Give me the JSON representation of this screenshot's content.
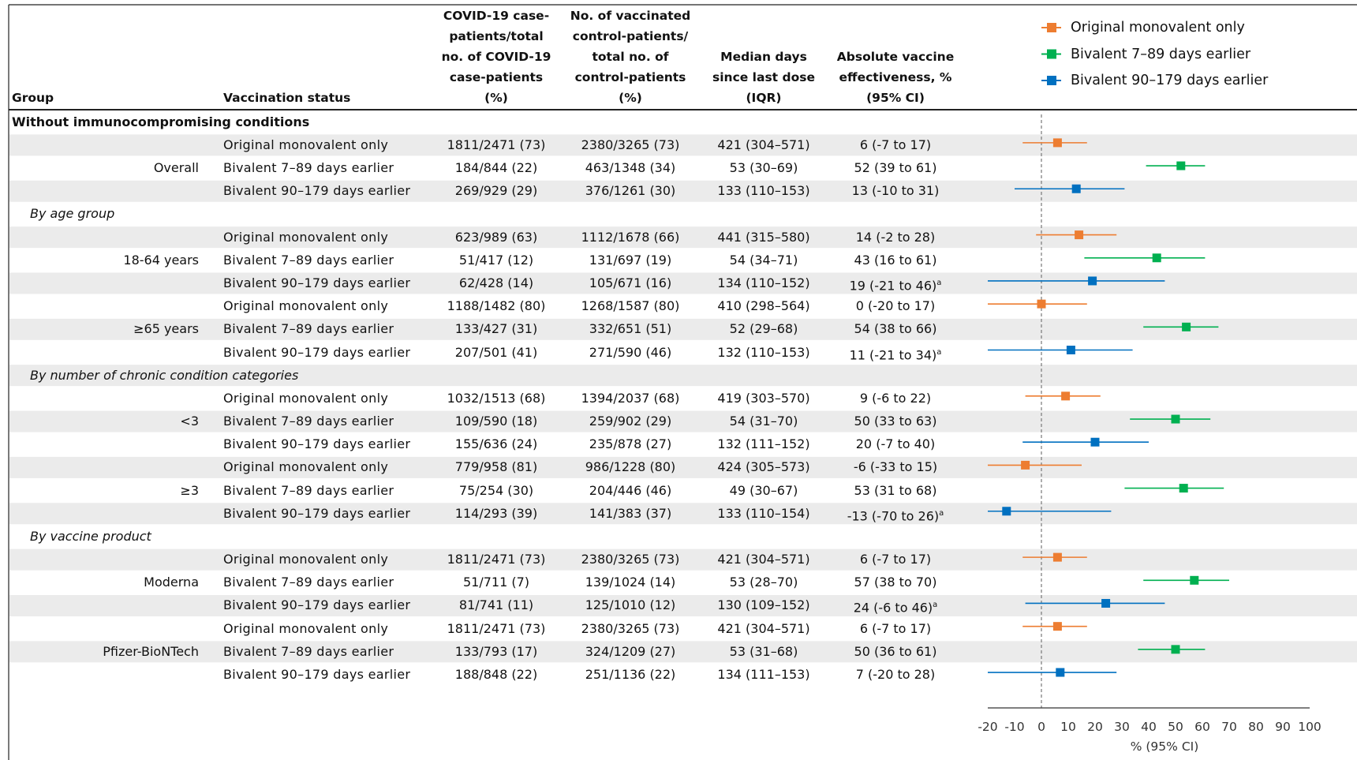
{
  "chart_data": {
    "type": "forest",
    "headers": [
      "Group",
      "Vaccination status",
      "No. of vaccinated COVID-19 case-patients/total no. of COVID-19 case-patients (%)",
      "No. of vaccinated control-patients/ total no. of control-patients (%)",
      "Median days since last dose (IQR)",
      "Absolute vaccine effectiveness, % (95% CI)"
    ],
    "series": [
      {
        "name": "Original monovalent only",
        "color": "#ED7D31"
      },
      {
        "name": "Bivalent 7–89 days earlier",
        "color": "#00B050"
      },
      {
        "name": "Bivalent 90–179 days earlier",
        "color": "#0070C0"
      }
    ],
    "sections": [
      {
        "title": "Without immunocompromising conditions",
        "groups": [
          {
            "label": "Overall",
            "rows": [
              {
                "cases": "1811/2471 (73)",
                "controls": "2380/3265 (73)",
                "median": "421 (304–571)",
                "value": 6,
                "lo": -7,
                "hi": 17,
                "value_label": "6 (-7 to 17)"
              },
              {
                "cases": "184/844 (22)",
                "controls": "463/1348 (34)",
                "median": "53 (30–69)",
                "value": 52,
                "lo": 39,
                "hi": 61,
                "value_label": "52 (39 to 61)"
              },
              {
                "cases": "269/929 (29)",
                "controls": "376/1261 (30)",
                "median": "133 (110–153)",
                "value": 13,
                "lo": -10,
                "hi": 31,
                "value_label": "13 (-10 to 31)"
              }
            ]
          }
        ]
      },
      {
        "title": "By age group",
        "groups": [
          {
            "label": "18-64 years",
            "rows": [
              {
                "cases": "623/989 (63)",
                "controls": "1112/1678 (66)",
                "median": "441 (315–580)",
                "value": 14,
                "lo": -2,
                "hi": 28,
                "value_label": "14 (-2 to 28)"
              },
              {
                "cases": "51/417 (12)",
                "controls": "131/697 (19)",
                "median": "54 (34–71)",
                "value": 43,
                "lo": 16,
                "hi": 61,
                "value_label": "43 (16 to 61)"
              },
              {
                "cases": "62/428 (14)",
                "controls": "105/671 (16)",
                "median": "134 (110–152)",
                "value": 19,
                "lo": -21,
                "hi": 46,
                "value_label": "19 (-21 to 46)",
                "note": "a"
              }
            ]
          },
          {
            "label": "≥65 years",
            "rows": [
              {
                "cases": "1188/1482 (80)",
                "controls": "1268/1587 (80)",
                "median": "410 (298–564)",
                "value": 0,
                "lo": -20,
                "hi": 17,
                "value_label": "0 (-20 to 17)"
              },
              {
                "cases": "133/427 (31)",
                "controls": "332/651 (51)",
                "median": "52 (29–68)",
                "value": 54,
                "lo": 38,
                "hi": 66,
                "value_label": "54 (38 to 66)"
              },
              {
                "cases": "207/501 (41)",
                "controls": "271/590 (46)",
                "median": "132 (110–153)",
                "value": 11,
                "lo": -21,
                "hi": 34,
                "value_label": "11 (-21 to 34)",
                "note": "a"
              }
            ]
          }
        ]
      },
      {
        "title": "By number of chronic condition categories",
        "groups": [
          {
            "label": "<3",
            "rows": [
              {
                "cases": "1032/1513 (68)",
                "controls": "1394/2037 (68)",
                "median": "419 (303–570)",
                "value": 9,
                "lo": -6,
                "hi": 22,
                "value_label": "9 (-6 to 22)"
              },
              {
                "cases": "109/590 (18)",
                "controls": "259/902 (29)",
                "median": "54 (31–70)",
                "value": 50,
                "lo": 33,
                "hi": 63,
                "value_label": "50 (33 to 63)"
              },
              {
                "cases": "155/636 (24)",
                "controls": "235/878 (27)",
                "median": "132 (111–152)",
                "value": 20,
                "lo": -7,
                "hi": 40,
                "value_label": "20 (-7 to 40)"
              }
            ]
          },
          {
            "label": "≥3",
            "rows": [
              {
                "cases": "779/958 (81)",
                "controls": "986/1228 (80)",
                "median": "424 (305–573)",
                "value": -6,
                "lo": -33,
                "hi": 15,
                "value_label": "-6 (-33 to 15)"
              },
              {
                "cases": "75/254 (30)",
                "controls": "204/446 (46)",
                "median": "49 (30–67)",
                "value": 53,
                "lo": 31,
                "hi": 68,
                "value_label": "53 (31 to 68)"
              },
              {
                "cases": "114/293 (39)",
                "controls": "141/383 (37)",
                "median": "133 (110–154)",
                "value": -13,
                "lo": -70,
                "hi": 26,
                "value_label": "-13 (-70 to 26)",
                "note": "a"
              }
            ]
          }
        ]
      },
      {
        "title": "By vaccine product",
        "groups": [
          {
            "label": "Moderna",
            "rows": [
              {
                "cases": "1811/2471 (73)",
                "controls": "2380/3265 (73)",
                "median": "421 (304–571)",
                "value": 6,
                "lo": -7,
                "hi": 17,
                "value_label": "6 (-7 to 17)"
              },
              {
                "cases": "51/711 (7)",
                "controls": "139/1024 (14)",
                "median": "53 (28–70)",
                "value": 57,
                "lo": 38,
                "hi": 70,
                "value_label": "57 (38 to 70)"
              },
              {
                "cases": "81/741 (11)",
                "controls": "125/1010 (12)",
                "median": "130 (109–152)",
                "value": 24,
                "lo": -6,
                "hi": 46,
                "value_label": "24 (-6 to 46)",
                "note": "a"
              }
            ]
          },
          {
            "label": "Pfizer-BioNTech",
            "rows": [
              {
                "cases": "1811/2471 (73)",
                "controls": "2380/3265 (73)",
                "median": "421 (304–571)",
                "value": 6,
                "lo": -7,
                "hi": 17,
                "value_label": "6 (-7 to 17)"
              },
              {
                "cases": "133/793 (17)",
                "controls": "324/1209 (27)",
                "median": "53 (31–68)",
                "value": 50,
                "lo": 36,
                "hi": 61,
                "value_label": "50 (36 to 61)"
              },
              {
                "cases": "188/848 (22)",
                "controls": "251/1136 (22)",
                "median": "134 (111–153)",
                "value": 7,
                "lo": -20,
                "hi": 28,
                "value_label": "7 (-20 to 28)"
              }
            ]
          }
        ]
      }
    ],
    "xlim": [
      -20,
      100
    ],
    "xticks": [
      -20,
      -10,
      0,
      10,
      20,
      30,
      40,
      50,
      60,
      70,
      80,
      90,
      100
    ],
    "xlabel": "% (95% CI)",
    "reference_line": 0
  }
}
